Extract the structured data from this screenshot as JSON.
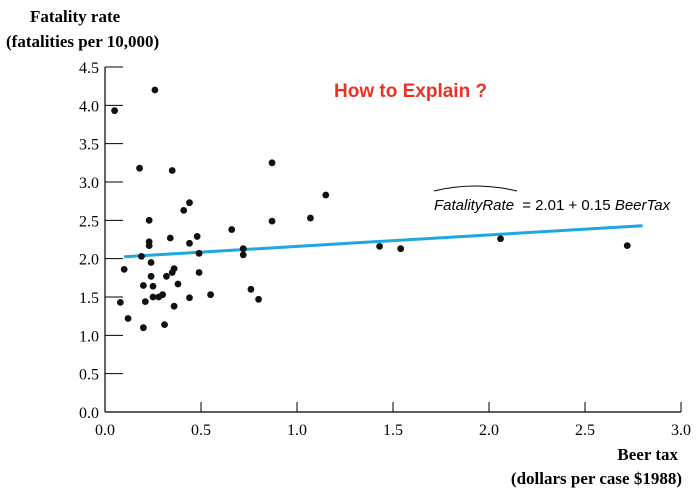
{
  "chart_data": {
    "type": "scatter",
    "title": "",
    "ylabel_lines": [
      "Fatality rate",
      "(fatalities per 10,000)"
    ],
    "xlabel_lines": [
      "Beer tax",
      "(dollars per case $1988)"
    ],
    "xlim": [
      0.0,
      3.0
    ],
    "ylim": [
      0.0,
      4.5
    ],
    "xticks": [
      "0.0",
      "0.5",
      "1.0",
      "1.5",
      "2.0",
      "2.5",
      "3.0"
    ],
    "yticks": [
      "0.0",
      "0.5",
      "1.0",
      "1.5",
      "2.0",
      "2.5",
      "3.0",
      "3.5",
      "4.0",
      "4.5"
    ],
    "grid": false,
    "points": [
      {
        "x": 0.05,
        "y": 3.93
      },
      {
        "x": 0.08,
        "y": 1.43
      },
      {
        "x": 0.1,
        "y": 1.86
      },
      {
        "x": 0.12,
        "y": 1.22
      },
      {
        "x": 0.18,
        "y": 3.18
      },
      {
        "x": 0.19,
        "y": 2.03
      },
      {
        "x": 0.2,
        "y": 1.65
      },
      {
        "x": 0.2,
        "y": 1.1
      },
      {
        "x": 0.21,
        "y": 1.44
      },
      {
        "x": 0.23,
        "y": 2.5
      },
      {
        "x": 0.23,
        "y": 2.22
      },
      {
        "x": 0.23,
        "y": 2.17
      },
      {
        "x": 0.24,
        "y": 1.95
      },
      {
        "x": 0.24,
        "y": 1.77
      },
      {
        "x": 0.25,
        "y": 1.64
      },
      {
        "x": 0.25,
        "y": 1.5
      },
      {
        "x": 0.26,
        "y": 4.2
      },
      {
        "x": 0.28,
        "y": 1.5
      },
      {
        "x": 0.3,
        "y": 1.53
      },
      {
        "x": 0.31,
        "y": 1.14
      },
      {
        "x": 0.32,
        "y": 1.77
      },
      {
        "x": 0.34,
        "y": 2.27
      },
      {
        "x": 0.35,
        "y": 3.15
      },
      {
        "x": 0.35,
        "y": 1.82
      },
      {
        "x": 0.36,
        "y": 1.38
      },
      {
        "x": 0.36,
        "y": 1.87
      },
      {
        "x": 0.38,
        "y": 1.67
      },
      {
        "x": 0.41,
        "y": 2.63
      },
      {
        "x": 0.44,
        "y": 2.73
      },
      {
        "x": 0.44,
        "y": 2.2
      },
      {
        "x": 0.44,
        "y": 1.49
      },
      {
        "x": 0.48,
        "y": 2.29
      },
      {
        "x": 0.49,
        "y": 2.07
      },
      {
        "x": 0.49,
        "y": 1.82
      },
      {
        "x": 0.55,
        "y": 1.53
      },
      {
        "x": 0.66,
        "y": 2.38
      },
      {
        "x": 0.72,
        "y": 2.13
      },
      {
        "x": 0.72,
        "y": 2.05
      },
      {
        "x": 0.76,
        "y": 1.6
      },
      {
        "x": 0.8,
        "y": 1.47
      },
      {
        "x": 0.87,
        "y": 3.25
      },
      {
        "x": 0.87,
        "y": 2.49
      },
      {
        "x": 1.07,
        "y": 2.53
      },
      {
        "x": 1.15,
        "y": 2.83
      },
      {
        "x": 1.43,
        "y": 2.16
      },
      {
        "x": 1.54,
        "y": 2.13
      },
      {
        "x": 2.06,
        "y": 2.26
      },
      {
        "x": 2.72,
        "y": 2.17
      }
    ],
    "fit_line": {
      "intercept": 2.01,
      "slope": 0.15,
      "x_range": [
        0.1,
        2.8
      ],
      "color": "#1fa7e1"
    },
    "fit_equation": {
      "lhs": "FatalityRate",
      "rhs_prefix": "= 2.01 + 0.15",
      "rhs_var": "BeerTax"
    },
    "annotation": {
      "text": "How to Explain ?",
      "color": "#ee3124"
    },
    "point_color": "#111111"
  }
}
